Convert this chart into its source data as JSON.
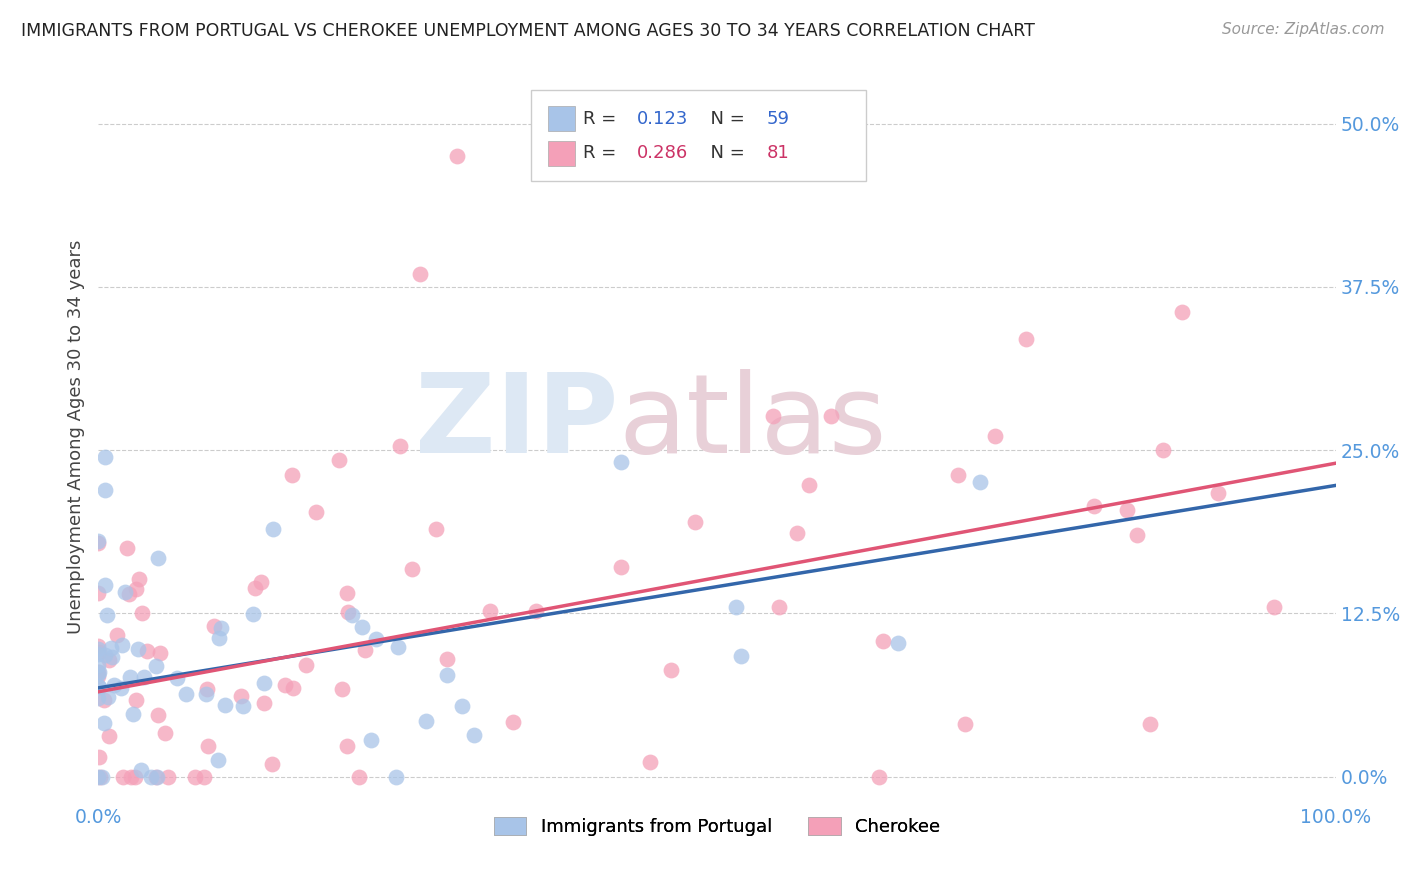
{
  "title": "IMMIGRANTS FROM PORTUGAL VS CHEROKEE UNEMPLOYMENT AMONG AGES 30 TO 34 YEARS CORRELATION CHART",
  "source": "Source: ZipAtlas.com",
  "ylabel": "Unemployment Among Ages 30 to 34 years",
  "xlim": [
    0.0,
    1.0
  ],
  "ylim": [
    -0.02,
    0.54
  ],
  "ytick_values": [
    0.0,
    0.125,
    0.25,
    0.375,
    0.5
  ],
  "ytick_labels": [
    "0.0%",
    "12.5%",
    "25.0%",
    "37.5%",
    "50.0%"
  ],
  "xtick_values": [
    0.0,
    1.0
  ],
  "xtick_labels": [
    "0.0%",
    "100.0%"
  ],
  "portugal_color": "#a8c4e8",
  "cherokee_color": "#f4a0b8",
  "portugal_line_color": "#3366aa",
  "cherokee_line_color": "#e05575",
  "background_color": "#ffffff",
  "watermark_color": "#dde8f4",
  "watermark_color2": "#e8d0d8",
  "tick_color": "#5599dd",
  "R_portugal": "0.123",
  "N_portugal": "59",
  "R_cherokee": "0.286",
  "N_cherokee": "81",
  "portugal_label": "Immigrants from Portugal",
  "cherokee_label": "Cherokee",
  "portugal_trend_intercept": 0.068,
  "portugal_trend_slope": 0.155,
  "cherokee_trend_intercept": 0.065,
  "cherokee_trend_slope": 0.175
}
